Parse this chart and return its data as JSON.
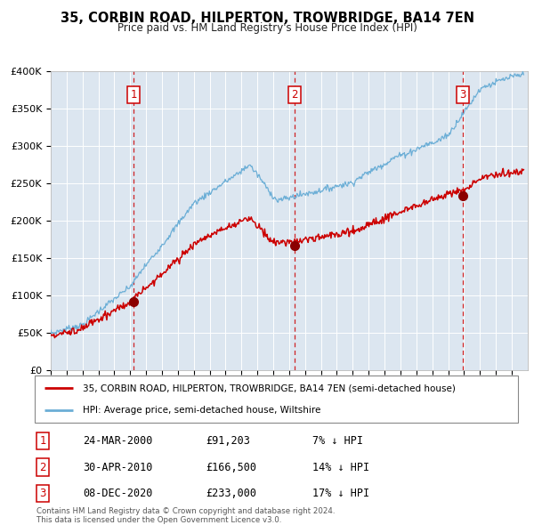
{
  "title": "35, CORBIN ROAD, HILPERTON, TROWBRIDGE, BA14 7EN",
  "subtitle": "Price paid vs. HM Land Registry's House Price Index (HPI)",
  "plot_bg_color": "#dce6f0",
  "hpi_color": "#6baed6",
  "price_color": "#cc0000",
  "vline_color": "#cc0000",
  "marker_color": "#8b0000",
  "ylim": [
    0,
    400000
  ],
  "yticks": [
    0,
    50000,
    100000,
    150000,
    200000,
    250000,
    300000,
    350000,
    400000
  ],
  "ytick_labels": [
    "£0",
    "£50K",
    "£100K",
    "£150K",
    "£200K",
    "£250K",
    "£300K",
    "£350K",
    "£400K"
  ],
  "sale1_date": 2000.23,
  "sale1_price": 91203,
  "sale2_date": 2010.33,
  "sale2_price": 166500,
  "sale3_date": 2020.93,
  "sale3_price": 233000,
  "legend_label_red": "35, CORBIN ROAD, HILPERTON, TROWBRIDGE, BA14 7EN (semi-detached house)",
  "legend_label_blue": "HPI: Average price, semi-detached house, Wiltshire",
  "table_rows": [
    [
      "1",
      "24-MAR-2000",
      "£91,203",
      "7% ↓ HPI"
    ],
    [
      "2",
      "30-APR-2010",
      "£166,500",
      "14% ↓ HPI"
    ],
    [
      "3",
      "08-DEC-2020",
      "£233,000",
      "17% ↓ HPI"
    ]
  ],
  "footer": "Contains HM Land Registry data © Crown copyright and database right 2024.\nThis data is licensed under the Open Government Licence v3.0.",
  "xlim_start": 1995.0,
  "xlim_end": 2025.0
}
